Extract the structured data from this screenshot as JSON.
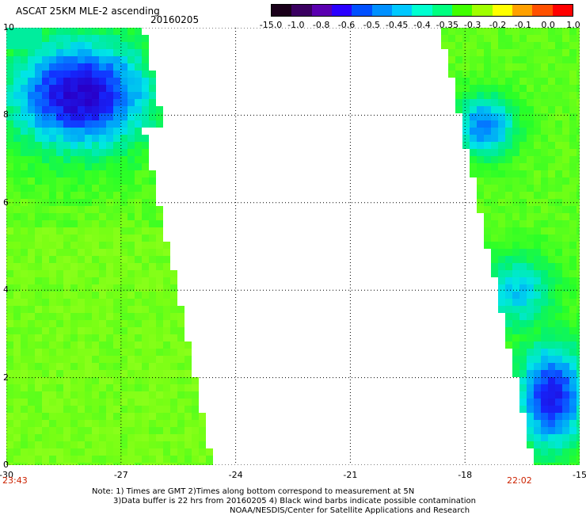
{
  "title": "ASCAT 25KM MLE-2 ascending",
  "date": "20160205",
  "colorbar": {
    "labels": [
      "-15.0",
      "-1.0",
      "-0.8",
      "-0.6",
      "-0.5",
      "-0.45",
      "-0.4",
      "-0.35",
      "-0.3",
      "-0.2",
      "-0.1",
      "0.0",
      "1.0"
    ],
    "colors": [
      "#1a001a",
      "#3a0060",
      "#5a00b0",
      "#2a00ff",
      "#0050ff",
      "#0090ff",
      "#00c8ff",
      "#00ffd0",
      "#00ff80",
      "#40ff00",
      "#a0ff00",
      "#ffff00",
      "#ffa000",
      "#ff5000",
      "#ff0000"
    ]
  },
  "axes": {
    "x_ticks": [
      "-30",
      "-27",
      "-24",
      "-21",
      "-18",
      "-15"
    ],
    "y_ticks": [
      "0",
      "2",
      "4",
      "6",
      "8",
      "10"
    ],
    "xlim": [
      -30,
      -15
    ],
    "ylim": [
      0,
      10
    ],
    "grid": true
  },
  "times": {
    "left": "23:43",
    "right": "22:02"
  },
  "notes": [
    "Note: 1) Times are GMT 2)Times along bottom correspond to measurement at 5N",
    "3)Data buffer is 22 hrs from 20160205 4) Black wind barbs indicate possible contamination",
    "NOAA/NESDIS/Center for Satellite Applications and Research"
  ],
  "colors": {
    "time_label": "#cc2200",
    "grid": "#000000"
  }
}
